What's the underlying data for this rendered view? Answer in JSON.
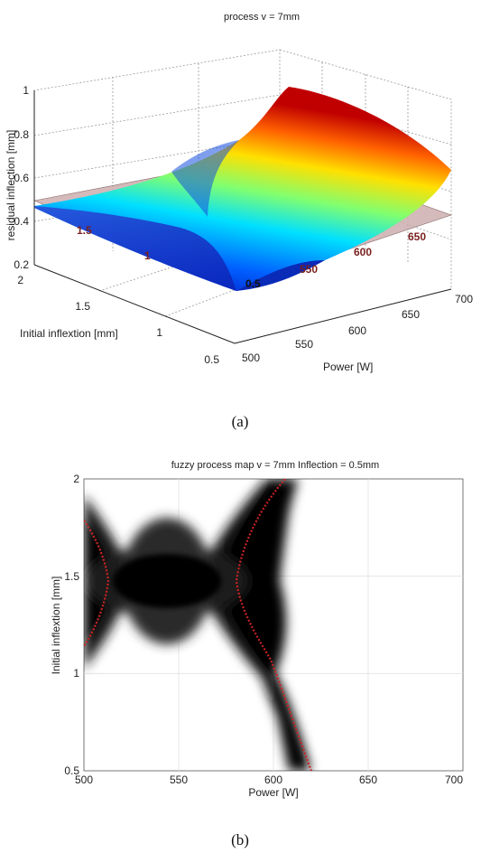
{
  "chart_data": [
    {
      "type": "surface",
      "panel_label": "(a)",
      "title": "process v = 7mm",
      "xlabel": "Power [W]",
      "ylabel": "Initial inflextion [mm]",
      "zlabel": "residual inflection [mm]",
      "xlim": [
        500,
        700
      ],
      "ylim": [
        0.5,
        2
      ],
      "zlim": [
        0.2,
        1
      ],
      "x_ticks": [
        "500",
        "550",
        "600",
        "650",
        "700"
      ],
      "y_ticks": [
        "0.5",
        "1",
        "1.5",
        "2"
      ],
      "z_ticks": [
        "0.2",
        "0.4",
        "0.6",
        "0.8",
        "1"
      ],
      "reference_plane_z": 0.5,
      "contour_labels": [
        "1.5",
        "1",
        "0.5",
        "550",
        "600",
        "650"
      ],
      "surface_grid": {
        "power": [
          500,
          600,
          700
        ],
        "inflection": [
          0.5,
          1.25,
          2
        ],
        "residual": [
          [
            0.2,
            0.35,
            0.62
          ],
          [
            0.3,
            0.42,
            0.85
          ],
          [
            0.45,
            0.62,
            1.0
          ]
        ]
      },
      "colormap": "jet",
      "plane_color": "#c9a9a9"
    },
    {
      "type": "heatmap",
      "panel_label": "(b)",
      "title": "fuzzy process map v = 7mm  Inflection = 0.5mm",
      "xlabel": "Power [W]",
      "ylabel": "Initial inflextion [mm]",
      "xlim": [
        500,
        700
      ],
      "ylim": [
        0.5,
        2
      ],
      "x_ticks": [
        "500",
        "550",
        "600",
        "650",
        "700"
      ],
      "y_ticks": [
        "0.5",
        "1",
        "1.5",
        "2"
      ],
      "grid": true,
      "colormap": "grayscale (black = high membership)",
      "optimum_curves": [
        {
          "color": "#cc2222",
          "points": [
            [
              500,
              1.78
            ],
            [
              508,
              1.62
            ],
            [
              513,
              1.45
            ],
            [
              508,
              1.28
            ],
            [
              500,
              1.1
            ]
          ]
        },
        {
          "color": "#cc2222",
          "points": [
            [
              610,
              2.0
            ],
            [
              590,
              1.82
            ],
            [
              574,
              1.6
            ],
            [
              570,
              1.45
            ],
            [
              574,
              1.3
            ],
            [
              590,
              1.12
            ],
            [
              605,
              0.95
            ],
            [
              620,
              0.75
            ],
            [
              632,
              0.55
            ]
          ]
        }
      ]
    }
  ],
  "captions": [
    "(a)",
    "(b)"
  ]
}
